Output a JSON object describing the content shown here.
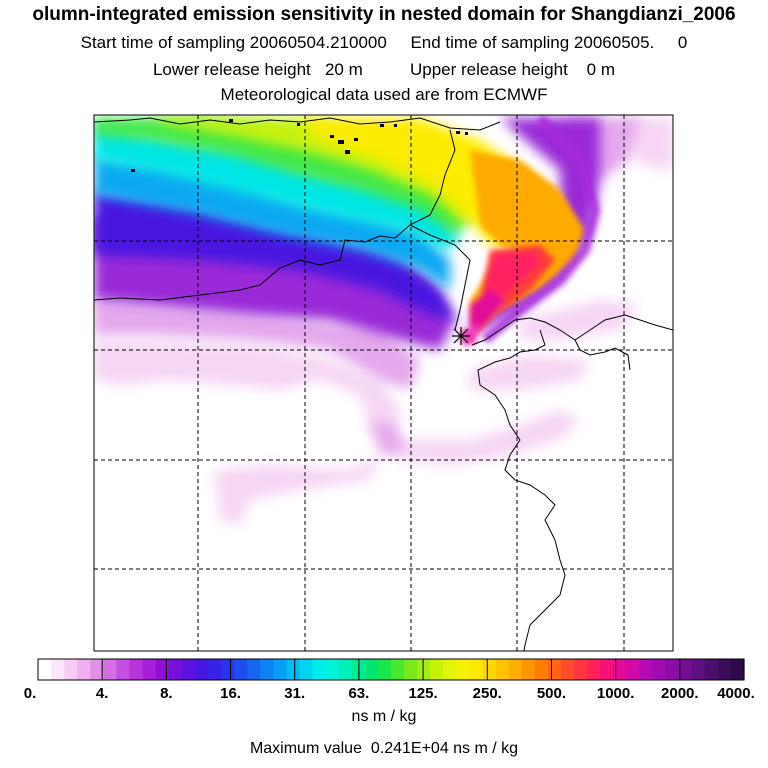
{
  "header": {
    "title": "olumn-integrated emission sensitivity in nested domain for Shangdianzi_2006",
    "sampling_line": "Start time of sampling 20060504.210000     End time of sampling 20060505.     0",
    "release_line": "Lower release height   20 m          Upper release height    0 m",
    "met_line": "Meteorological data used are from ECMWF"
  },
  "colorbar": {
    "tick_labels": [
      "0.",
      "4.",
      "8.",
      "16.",
      "31.",
      "63.",
      "125.",
      "250.",
      "500.",
      "1000.",
      "2000.",
      "4000."
    ],
    "colors": [
      "#ffffff",
      "#fde6fb",
      "#f6ccf4",
      "#eeb0ef",
      "#e28fe8",
      "#d46ee4",
      "#c54fe0",
      "#b634dc",
      "#a51ed8",
      "#8f10d4",
      "#7510d8",
      "#5d12de",
      "#4716e2",
      "#3822e6",
      "#2a34ea",
      "#1f4cee",
      "#1666f1",
      "#0e82f2",
      "#079ef3",
      "#00baf1",
      "#00d4ee",
      "#00eaea",
      "#00f2d8",
      "#00eeb8",
      "#00ea94",
      "#00e670",
      "#18e64c",
      "#48e830",
      "#78ea1c",
      "#a2ee10",
      "#c6f20a",
      "#e2f408",
      "#f6f206",
      "#fce800",
      "#fed800",
      "#fec400",
      "#feae00",
      "#fe9600",
      "#fe7e00",
      "#fe6414",
      "#fe4c2a",
      "#fe3640",
      "#fe2058",
      "#f6107a",
      "#e40a96",
      "#d00aa8",
      "#b80ab4",
      "#a00cb4",
      "#8a0ea6",
      "#740f94",
      "#5e0f80",
      "#4a0e6c",
      "#3a0c5a",
      "#2e0a4a"
    ],
    "units": "ns m / kg"
  },
  "max_value_line": "Maximum value  0.241E+04 ns m / kg",
  "map": {
    "release_point_marker": "asterisk-icon",
    "grid": "dashed",
    "legend_placement": "bottom"
  }
}
